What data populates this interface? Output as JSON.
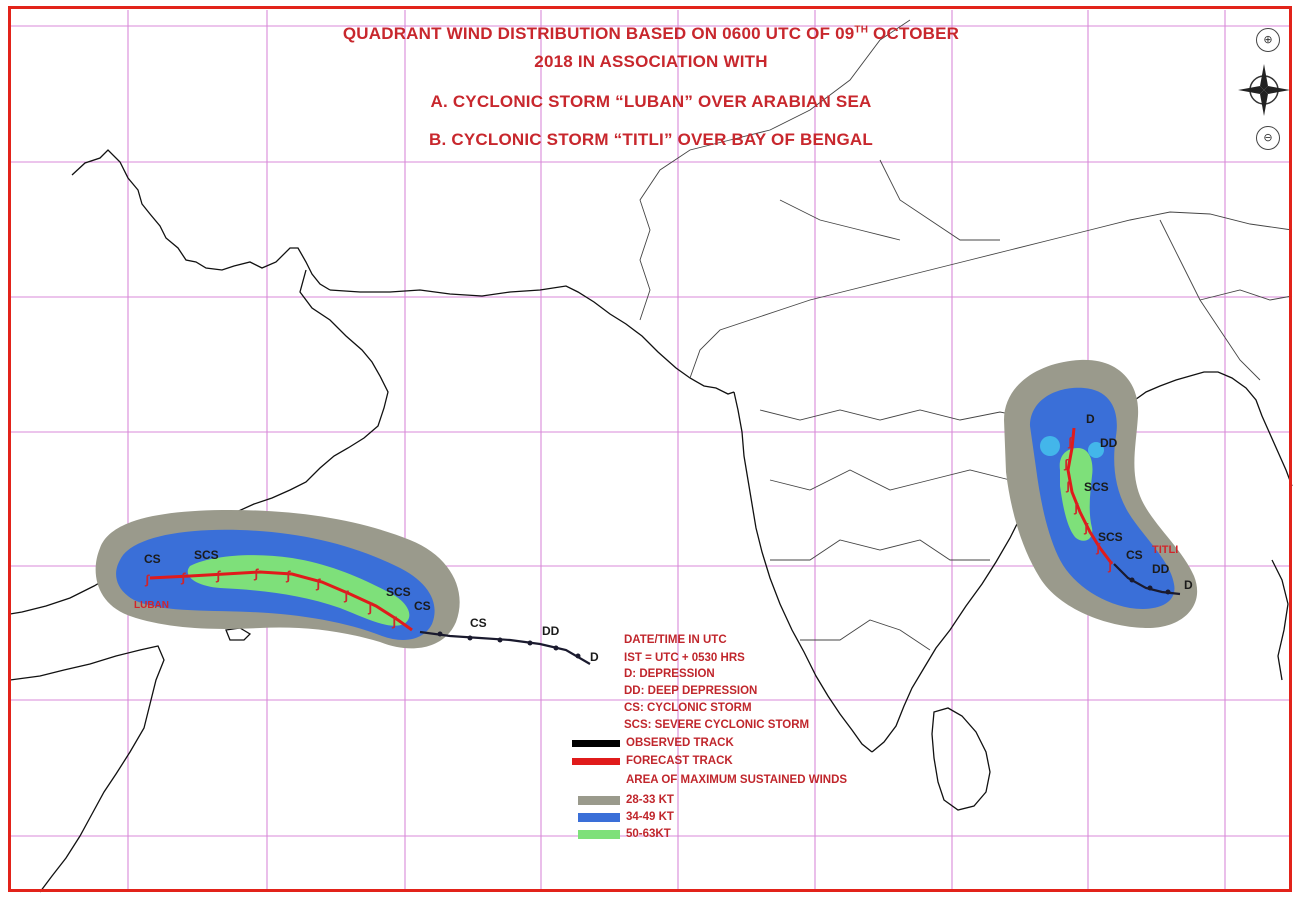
{
  "title": {
    "line1": "QUADRANT WIND DISTRIBUTION BASED ON 0600 UTC OF 09TH OCTOBER",
    "line2": "2018 IN ASSOCIATION WITH",
    "line3": "A. CYCLONIC STORM “LUBAN” OVER ARABIAN SEA",
    "line4": "B. CYCLONIC STORM “TITLI” OVER BAY OF BENGAL"
  },
  "legend": {
    "time_note": "DATE/TIME IN UTC",
    "ist_note": "IST = UTC + 0530 HRS",
    "d_def": "D: DEPRESSION",
    "dd_def": "DD: DEEP DEPRESSION",
    "cs_def": "CS: CYCLONIC STORM",
    "scs_def": "SCS: SEVERE CYCLONIC STORM",
    "observed_label": "OBSERVED TRACK",
    "forecast_label": "FORECAST TRACK",
    "area_heading": "AREA OF MAXIMUM SUSTAINED WINDS",
    "band1_label": "28-33 KT",
    "band2_label": "34-49 KT",
    "band3_label": "50-63KT",
    "observed_color": "#000000",
    "forecast_color": "#e01b1b",
    "band1_color": "#9a9a8c",
    "band2_color": "#3a6fd8",
    "band3_color": "#7ee07a"
  },
  "luban": {
    "name": "LUBAN",
    "stage_labels": [
      "CS",
      "SCS",
      "SCS",
      "CS",
      "CS",
      "DD",
      "D"
    ]
  },
  "titli": {
    "name": "TITLI",
    "stage_labels": [
      "D",
      "DD",
      "SCS",
      "SCS",
      "CS",
      "DD",
      "D"
    ]
  },
  "map_controls": {
    "zoom_in_icon": "zoom-in-icon",
    "compass_icon": "compass-rose-icon",
    "zoom_out_icon": "zoom-out-icon"
  }
}
